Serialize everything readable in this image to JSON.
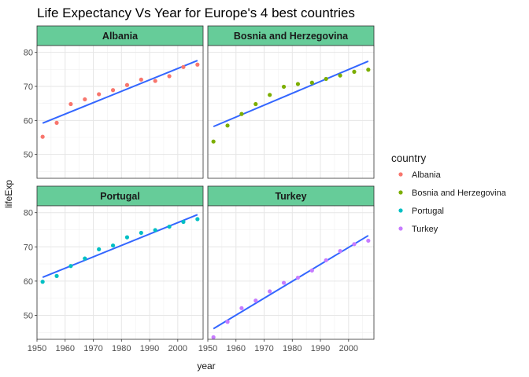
{
  "chart_data": {
    "type": "scatter",
    "title": "Life Expectancy Vs Year for Europe's 4 best countries",
    "xlabel": "year",
    "ylabel": "lifeExp",
    "xlim": [
      1950,
      2009
    ],
    "ylim": [
      43,
      82
    ],
    "x_ticks": [
      1950,
      1960,
      1970,
      1980,
      1990,
      2000
    ],
    "y_ticks": [
      50,
      60,
      70,
      80
    ],
    "grid": true,
    "legend": {
      "title": "country",
      "position": "right"
    },
    "colors": {
      "Albania": "#F8766D",
      "Bosnia and Herzegovina": "#7CAE00",
      "Portugal": "#00BFC4",
      "Turkey": "#C77CFF",
      "fit": "#3366FF",
      "strip_fill": "#66CC99"
    },
    "x": [
      1952,
      1957,
      1962,
      1967,
      1972,
      1977,
      1982,
      1987,
      1992,
      1997,
      2002,
      2007
    ],
    "series": [
      {
        "name": "Albania",
        "values": [
          55.2,
          59.3,
          64.8,
          66.2,
          67.7,
          68.9,
          70.4,
          72.0,
          71.6,
          73.0,
          75.7,
          76.4
        ],
        "fit": [
          59.2,
          77.6
        ]
      },
      {
        "name": "Bosnia and Herzegovina",
        "values": [
          53.8,
          58.5,
          61.9,
          64.8,
          67.5,
          69.9,
          70.7,
          71.1,
          72.2,
          73.2,
          74.3,
          74.9
        ],
        "fit": [
          58.2,
          77.4
        ]
      },
      {
        "name": "Portugal",
        "values": [
          59.8,
          61.5,
          64.4,
          66.6,
          69.3,
          70.4,
          72.8,
          74.1,
          74.9,
          75.9,
          77.3,
          78.1
        ],
        "fit": [
          61.1,
          79.4
        ]
      },
      {
        "name": "Turkey",
        "values": [
          43.6,
          48.1,
          52.1,
          54.3,
          57.0,
          59.5,
          61.0,
          63.1,
          66.1,
          68.8,
          70.8,
          71.8
        ],
        "fit": [
          46.1,
          73.3
        ]
      }
    ]
  }
}
